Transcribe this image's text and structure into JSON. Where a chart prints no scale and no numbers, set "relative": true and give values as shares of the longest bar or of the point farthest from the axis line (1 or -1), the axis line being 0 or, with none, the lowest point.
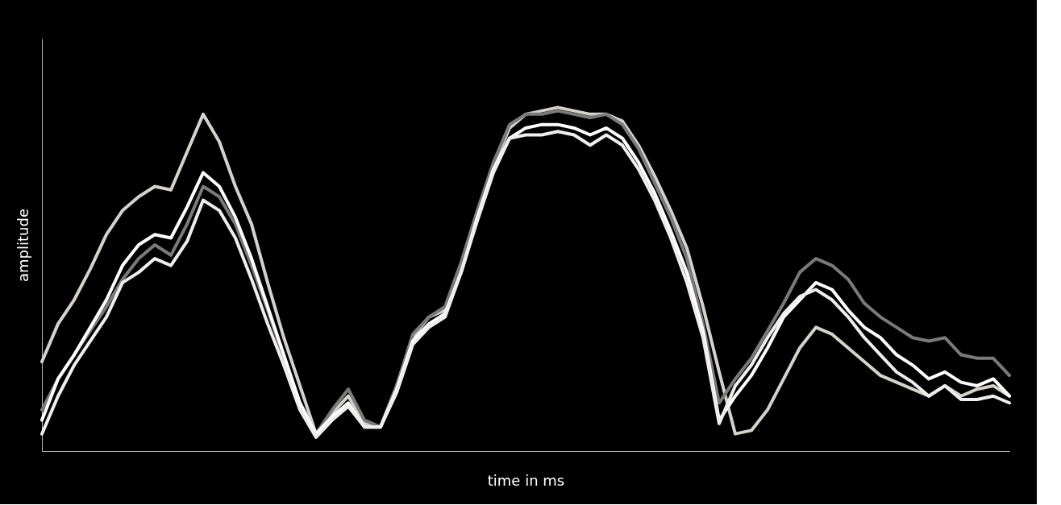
{
  "chart_data": {
    "type": "line",
    "relative": true,
    "xlabel": "time in ms",
    "ylabel": "amplitude",
    "grid": false,
    "legend": false,
    "marker": "none",
    "line_style": "solid",
    "categories": [
      null,
      null,
      null,
      null,
      null,
      null,
      null,
      null,
      null,
      null,
      null,
      null,
      null,
      null,
      null,
      null,
      null,
      null,
      null,
      null,
      null,
      null,
      null,
      null,
      null,
      null,
      null,
      null,
      null,
      null,
      null,
      null,
      null,
      null,
      null,
      null,
      null,
      null,
      null,
      null,
      null,
      null,
      null,
      null,
      null,
      null,
      null,
      null,
      null,
      null,
      null,
      null,
      null,
      null,
      null,
      null,
      null,
      null,
      null,
      null,
      null
    ],
    "series": [
      {
        "color": "#d6d2ca",
        "values": [
          0.26,
          0.37,
          0.44,
          0.53,
          0.63,
          0.7,
          0.74,
          0.77,
          0.76,
          0.87,
          0.98,
          0.9,
          0.77,
          0.66,
          0.49,
          0.33,
          0.19,
          0.05,
          0.11,
          0.16,
          0.08,
          0.07,
          0.19,
          0.33,
          0.39,
          0.41,
          0.54,
          0.69,
          0.83,
          0.94,
          0.98,
          0.99,
          1.0,
          0.99,
          0.98,
          0.98,
          0.96,
          0.89,
          0.8,
          0.7,
          0.59,
          0.42,
          0.23,
          0.05,
          0.06,
          0.12,
          0.21,
          0.3,
          0.36,
          0.34,
          0.3,
          0.26,
          0.22,
          0.2,
          0.18,
          0.16,
          0.19,
          0.16,
          0.18,
          0.19,
          0.16
        ]
      },
      {
        "color": "#7a7a7a",
        "values": [
          0.12,
          0.21,
          0.28,
          0.35,
          0.42,
          0.5,
          0.56,
          0.6,
          0.57,
          0.66,
          0.77,
          0.74,
          0.66,
          0.54,
          0.41,
          0.27,
          0.14,
          0.05,
          0.12,
          0.18,
          0.09,
          0.07,
          0.19,
          0.34,
          0.39,
          0.42,
          0.55,
          0.7,
          0.84,
          0.95,
          0.98,
          0.98,
          0.99,
          0.98,
          0.97,
          0.98,
          0.95,
          0.88,
          0.78,
          0.68,
          0.56,
          0.37,
          0.14,
          0.21,
          0.27,
          0.35,
          0.43,
          0.52,
          0.56,
          0.54,
          0.5,
          0.43,
          0.39,
          0.36,
          0.33,
          0.32,
          0.33,
          0.28,
          0.27,
          0.27,
          0.22
        ]
      },
      {
        "color": "#ffffff",
        "values": [
          0.09,
          0.21,
          0.28,
          0.36,
          0.44,
          0.54,
          0.6,
          0.63,
          0.62,
          0.71,
          0.81,
          0.77,
          0.68,
          0.56,
          0.42,
          0.28,
          0.14,
          0.05,
          0.1,
          0.14,
          0.07,
          0.07,
          0.18,
          0.32,
          0.37,
          0.4,
          0.52,
          0.68,
          0.82,
          0.91,
          0.94,
          0.95,
          0.95,
          0.94,
          0.92,
          0.94,
          0.91,
          0.84,
          0.75,
          0.64,
          0.52,
          0.35,
          0.09,
          0.16,
          0.22,
          0.3,
          0.39,
          0.44,
          0.49,
          0.47,
          0.41,
          0.36,
          0.33,
          0.28,
          0.25,
          0.21,
          0.23,
          0.2,
          0.19,
          0.21,
          0.16
        ]
      },
      {
        "color": "#eeeeee",
        "values": [
          0.05,
          0.16,
          0.25,
          0.32,
          0.39,
          0.49,
          0.52,
          0.56,
          0.54,
          0.61,
          0.73,
          0.7,
          0.62,
          0.5,
          0.37,
          0.25,
          0.12,
          0.04,
          0.09,
          0.13,
          0.07,
          0.07,
          0.17,
          0.31,
          0.36,
          0.39,
          0.52,
          0.67,
          0.81,
          0.91,
          0.92,
          0.92,
          0.93,
          0.92,
          0.89,
          0.92,
          0.89,
          0.82,
          0.73,
          0.62,
          0.49,
          0.33,
          0.08,
          0.19,
          0.25,
          0.33,
          0.4,
          0.45,
          0.47,
          0.44,
          0.39,
          0.33,
          0.28,
          0.23,
          0.2,
          0.16,
          0.19,
          0.15,
          0.15,
          0.16,
          0.14
        ]
      }
    ]
  }
}
